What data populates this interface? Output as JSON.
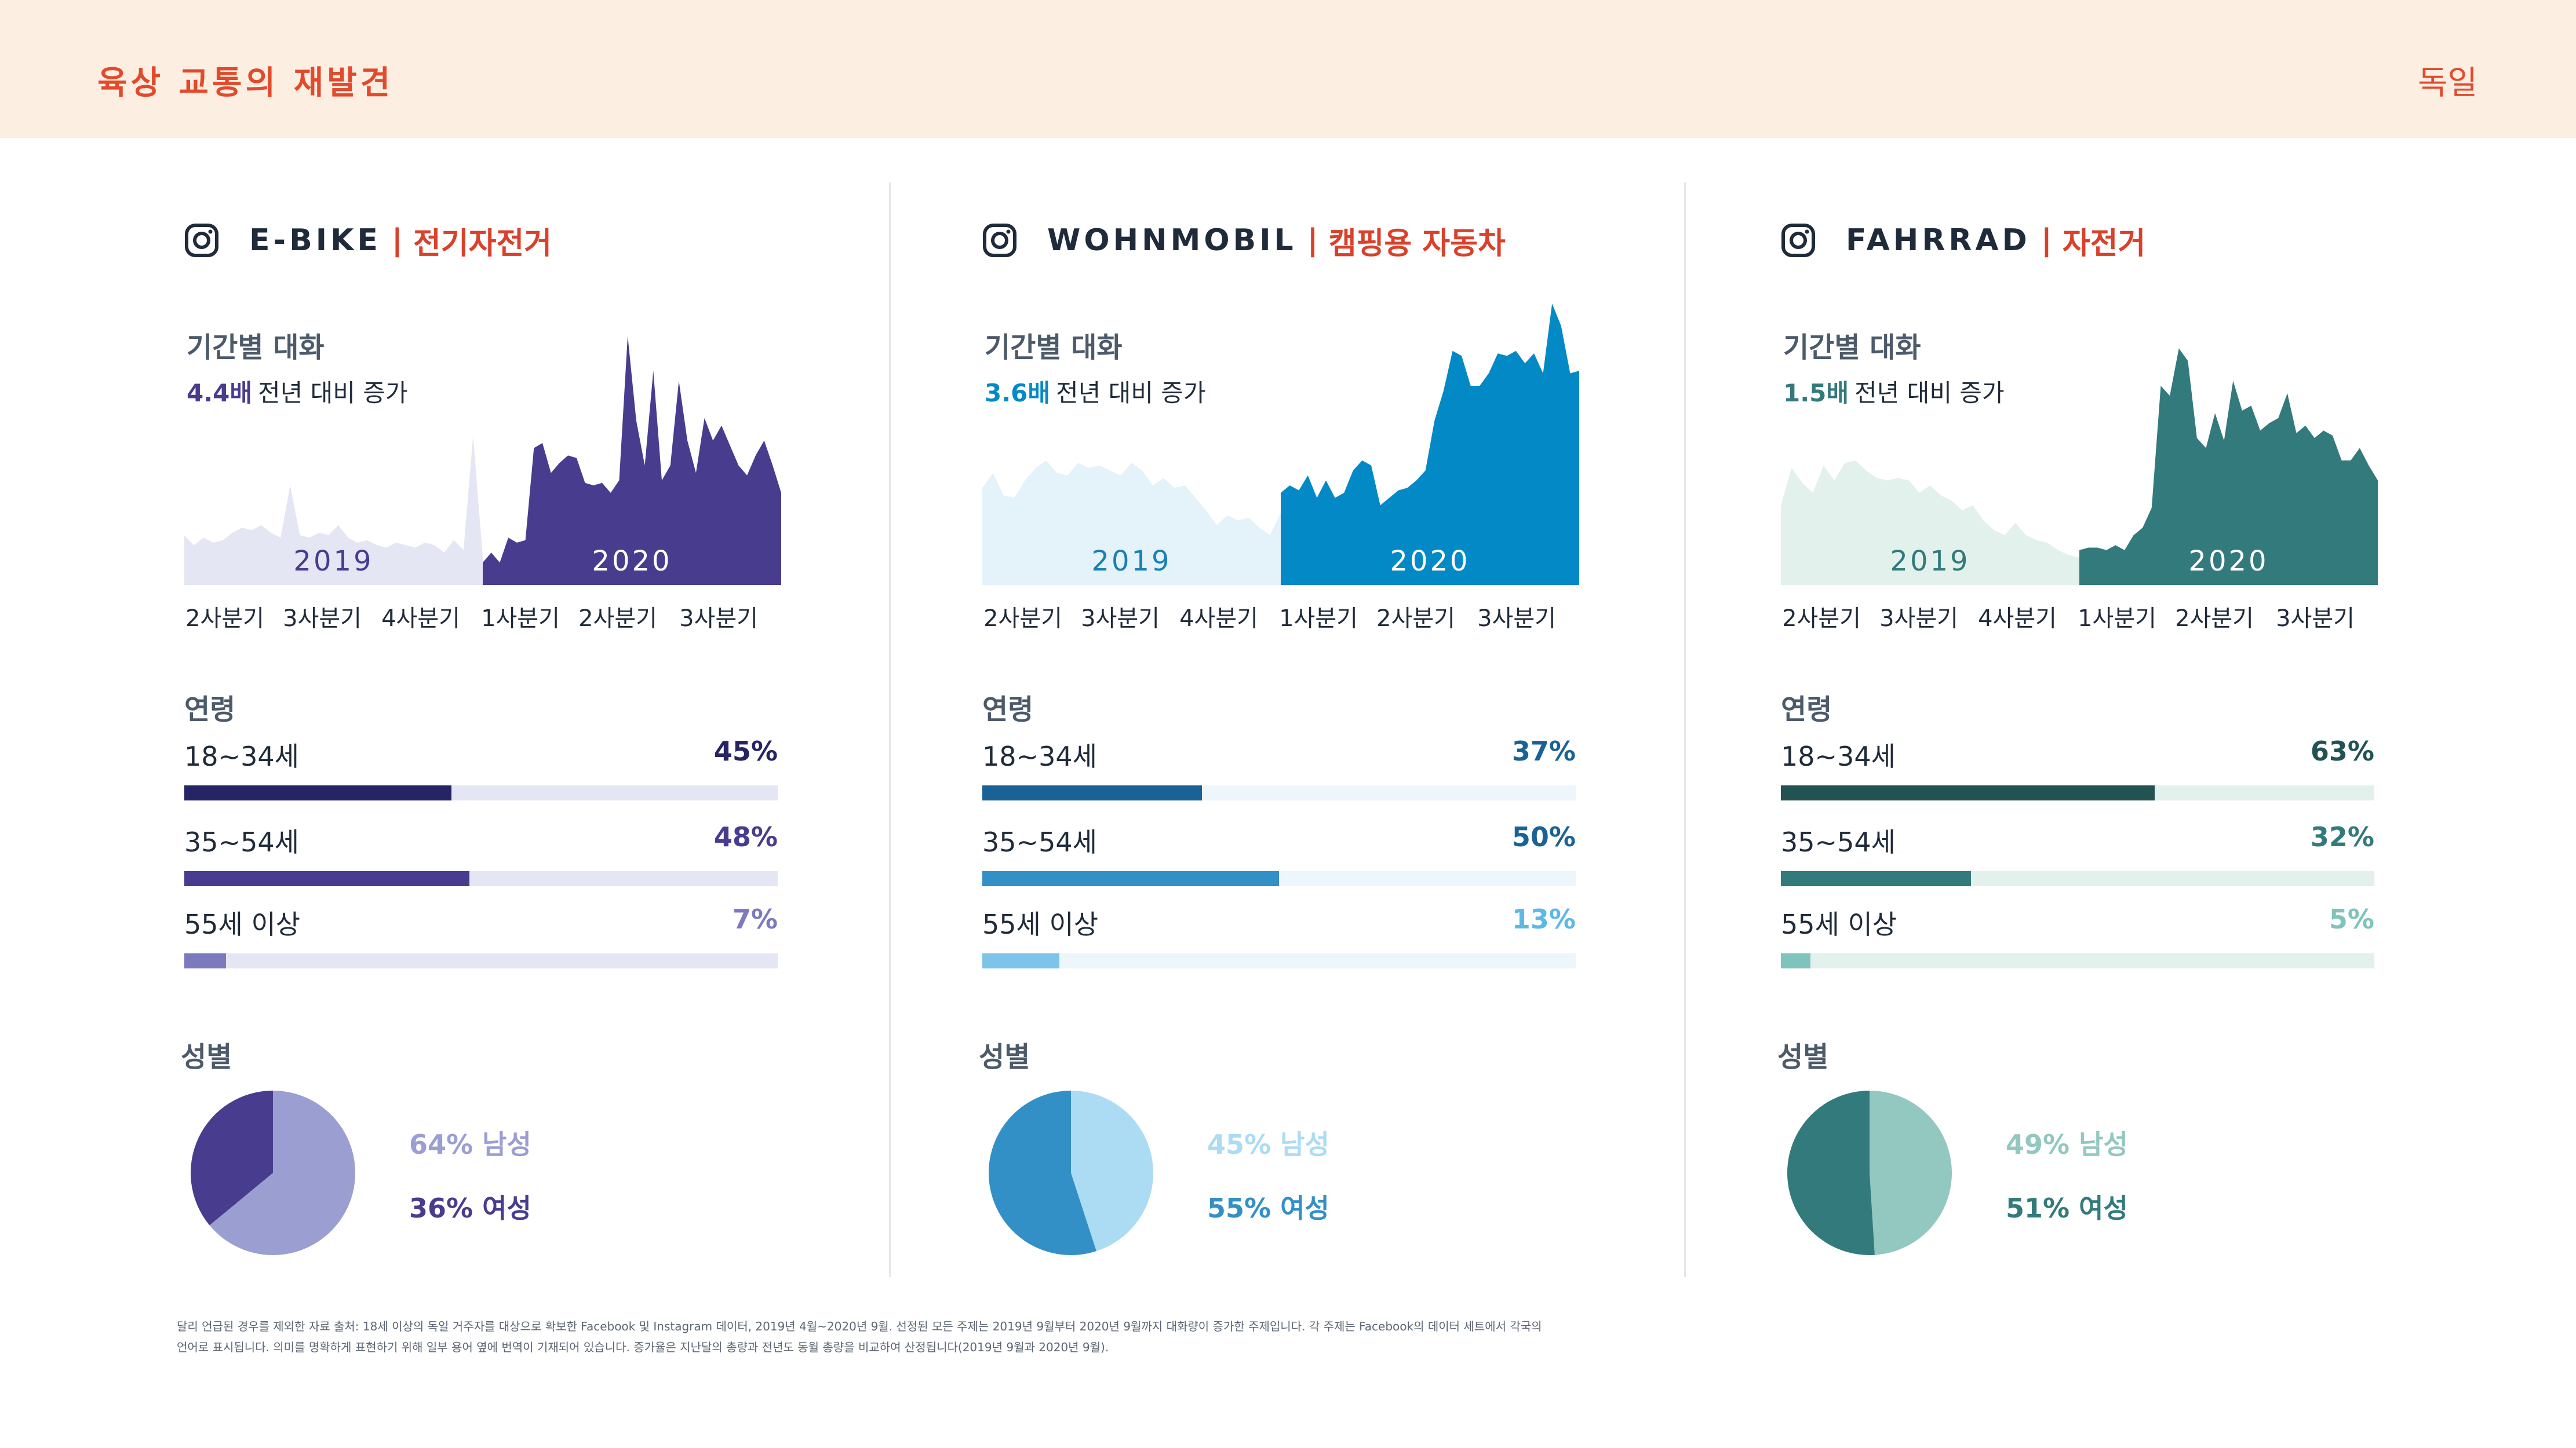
{
  "header": {
    "title": "육상 교통의 재발견",
    "country": "독일"
  },
  "chart_data": [
    {
      "type": "area",
      "brand": "E-BIKE",
      "sub": "전기자전거",
      "accent": "#483c8f",
      "sub_color": "#d9412b",
      "conv_title": "기간별 대화",
      "growth_num": "4.4배",
      "growth_text": "전년 대비 증가",
      "y2019": "2019",
      "y2020": "2020",
      "color2019": "#e5e6f4",
      "color2020": "#483c8f",
      "quarters": [
        "2사분기",
        "3사분기",
        "4사분기",
        "1사분기",
        "2사분기",
        "3사분기"
      ],
      "series2019": [
        20,
        16,
        19,
        17,
        18,
        21,
        23,
        22,
        24,
        21,
        19,
        40,
        20,
        19,
        21,
        20,
        24,
        19,
        17,
        18,
        16,
        15,
        17,
        16,
        15,
        17,
        16,
        13,
        18,
        14,
        60,
        11
      ],
      "series2020": [
        9,
        13,
        9,
        19,
        17,
        18,
        55,
        57,
        45,
        49,
        52,
        51,
        41,
        40,
        41,
        37,
        42,
        100,
        66,
        48,
        86,
        42,
        48,
        82,
        58,
        45,
        67,
        58,
        64,
        56,
        48,
        44,
        52,
        58,
        48,
        37
      ],
      "age_title": "연령",
      "ages": [
        {
          "label": "18~34세",
          "pct": "45%",
          "value": 45,
          "color": "#262464",
          "track": "#e5e6f4",
          "pct_color": "#262464"
        },
        {
          "label": "35~54세",
          "pct": "48%",
          "value": 48,
          "color": "#483c8f",
          "track": "#e5e6f4",
          "pct_color": "#483c8f"
        },
        {
          "label": "55세 이상",
          "pct": "7%",
          "value": 7,
          "color": "#7c79be",
          "track": "#e5e6f4",
          "pct_color": "#7c79be"
        }
      ],
      "gender_title": "성별",
      "male_pct": 64,
      "male_label": "64% 남성",
      "female_label": "36% 여성",
      "male_color": "#9b9ed1",
      "female_color": "#483c8f"
    },
    {
      "type": "area",
      "brand": "WOHNMOBIL",
      "sub": "캠핑용 자동차",
      "accent": "#0289c6",
      "sub_color": "#d9412b",
      "conv_title": "기간별 대화",
      "growth_num": "3.6배",
      "growth_text": "전년 대비 증가",
      "y2019": "2019",
      "y2020": "2020",
      "color2019": "#e4f2f9",
      "color2020": "#0289c6",
      "quarters": [
        "2사분기",
        "3사분기",
        "4사분기",
        "1사분기",
        "2사분기",
        "3사분기"
      ],
      "series2019": [
        39,
        45,
        36,
        35,
        42,
        47,
        50,
        45,
        44,
        49,
        47,
        48,
        46,
        44,
        49,
        46,
        40,
        43,
        39,
        40,
        35,
        30,
        24,
        28,
        26,
        27,
        23,
        20,
        29
      ],
      "series2020": [
        37,
        40,
        38,
        44,
        35,
        42,
        35,
        37,
        46,
        50,
        48,
        32,
        35,
        38,
        39,
        42,
        46,
        66,
        78,
        94,
        92,
        80,
        80,
        85,
        93,
        92,
        94,
        89,
        93,
        85,
        113,
        104,
        85,
        86
      ],
      "age_title": "연령",
      "ages": [
        {
          "label": "18~34세",
          "pct": "37%",
          "value": 37,
          "color": "#1a6295",
          "track": "#edf6fa",
          "pct_color": "#1a6295"
        },
        {
          "label": "35~54세",
          "pct": "50%",
          "value": 50,
          "color": "#3390c6",
          "track": "#edf6fa",
          "pct_color": "#1a6295"
        },
        {
          "label": "55세 이상",
          "pct": "13%",
          "value": 13,
          "color": "#7dc3ea",
          "track": "#edf6fa",
          "pct_color": "#5db8e6"
        }
      ],
      "gender_title": "성별",
      "male_pct": 45,
      "male_label": "45% 남성",
      "female_label": "55% 여성",
      "male_color": "#acdbf4",
      "female_color": "#3390c6"
    },
    {
      "type": "area",
      "brand": "FAHRRAD",
      "sub": "자전거",
      "accent": "#337a7c",
      "sub_color": "#d9412b",
      "conv_title": "기간별 대화",
      "growth_num": "1.5배",
      "growth_text": "전년 대비 증가",
      "y2019": "2019",
      "y2020": "2020",
      "color2019": "#e3f1ed",
      "color2020": "#337a7c",
      "quarters": [
        "2사분기",
        "3사분기",
        "4사분기",
        "1사분기",
        "2사분기",
        "3사분기"
      ],
      "series2019": [
        32,
        47,
        41,
        37,
        48,
        42,
        49,
        50,
        46,
        43,
        42,
        43,
        42,
        37,
        40,
        36,
        34,
        30,
        32,
        26,
        22,
        20,
        25,
        20,
        18,
        17,
        14,
        12,
        11
      ],
      "series2020": [
        14,
        15,
        15,
        14,
        16,
        14,
        20,
        23,
        31,
        80,
        76,
        95,
        90,
        59,
        55,
        69,
        58,
        82,
        70,
        72,
        62,
        65,
        67,
        77,
        61,
        64,
        59,
        62,
        60,
        50,
        50,
        55,
        48,
        42
      ],
      "age_title": "연령",
      "ages": [
        {
          "label": "18~34세",
          "pct": "63%",
          "value": 63,
          "color": "#235253",
          "track": "#e3f1ed",
          "pct_color": "#235253"
        },
        {
          "label": "35~54세",
          "pct": "32%",
          "value": 32,
          "color": "#337a7c",
          "track": "#e3f1ed",
          "pct_color": "#337a7c"
        },
        {
          "label": "55세 이상",
          "pct": "5%",
          "value": 5,
          "color": "#7ec3bc",
          "track": "#e3f1ed",
          "pct_color": "#7ec3bc"
        }
      ],
      "gender_title": "성별",
      "male_pct": 49,
      "male_label": "49% 남성",
      "female_label": "51% 여성",
      "male_color": "#92c8c0",
      "female_color": "#337a7c"
    }
  ],
  "footer": {
    "line1": "달리 언급된 경우를 제외한 자료 출처: 18세 이상의 독일 거주자를 대상으로 확보한 Facebook 및 Instagram 데이터, 2019년 4월~2020년 9월. 선정된 모든 주제는 2019년 9월부터 2020년 9월까지 대화량이 증가한 주제입니다. 각 주제는 Facebook의 데이터 세트에서 각국의",
    "line2": "언어로 표시됩니다. 의미를 명확하게 표현하기 위해 일부 용어 옆에 번역이 기재되어 있습니다. 증가율은 지난달의 총량과 전년도 동월 총량을 비교하여 산정됩니다(2019년 9월과 2020년 9월)."
  }
}
